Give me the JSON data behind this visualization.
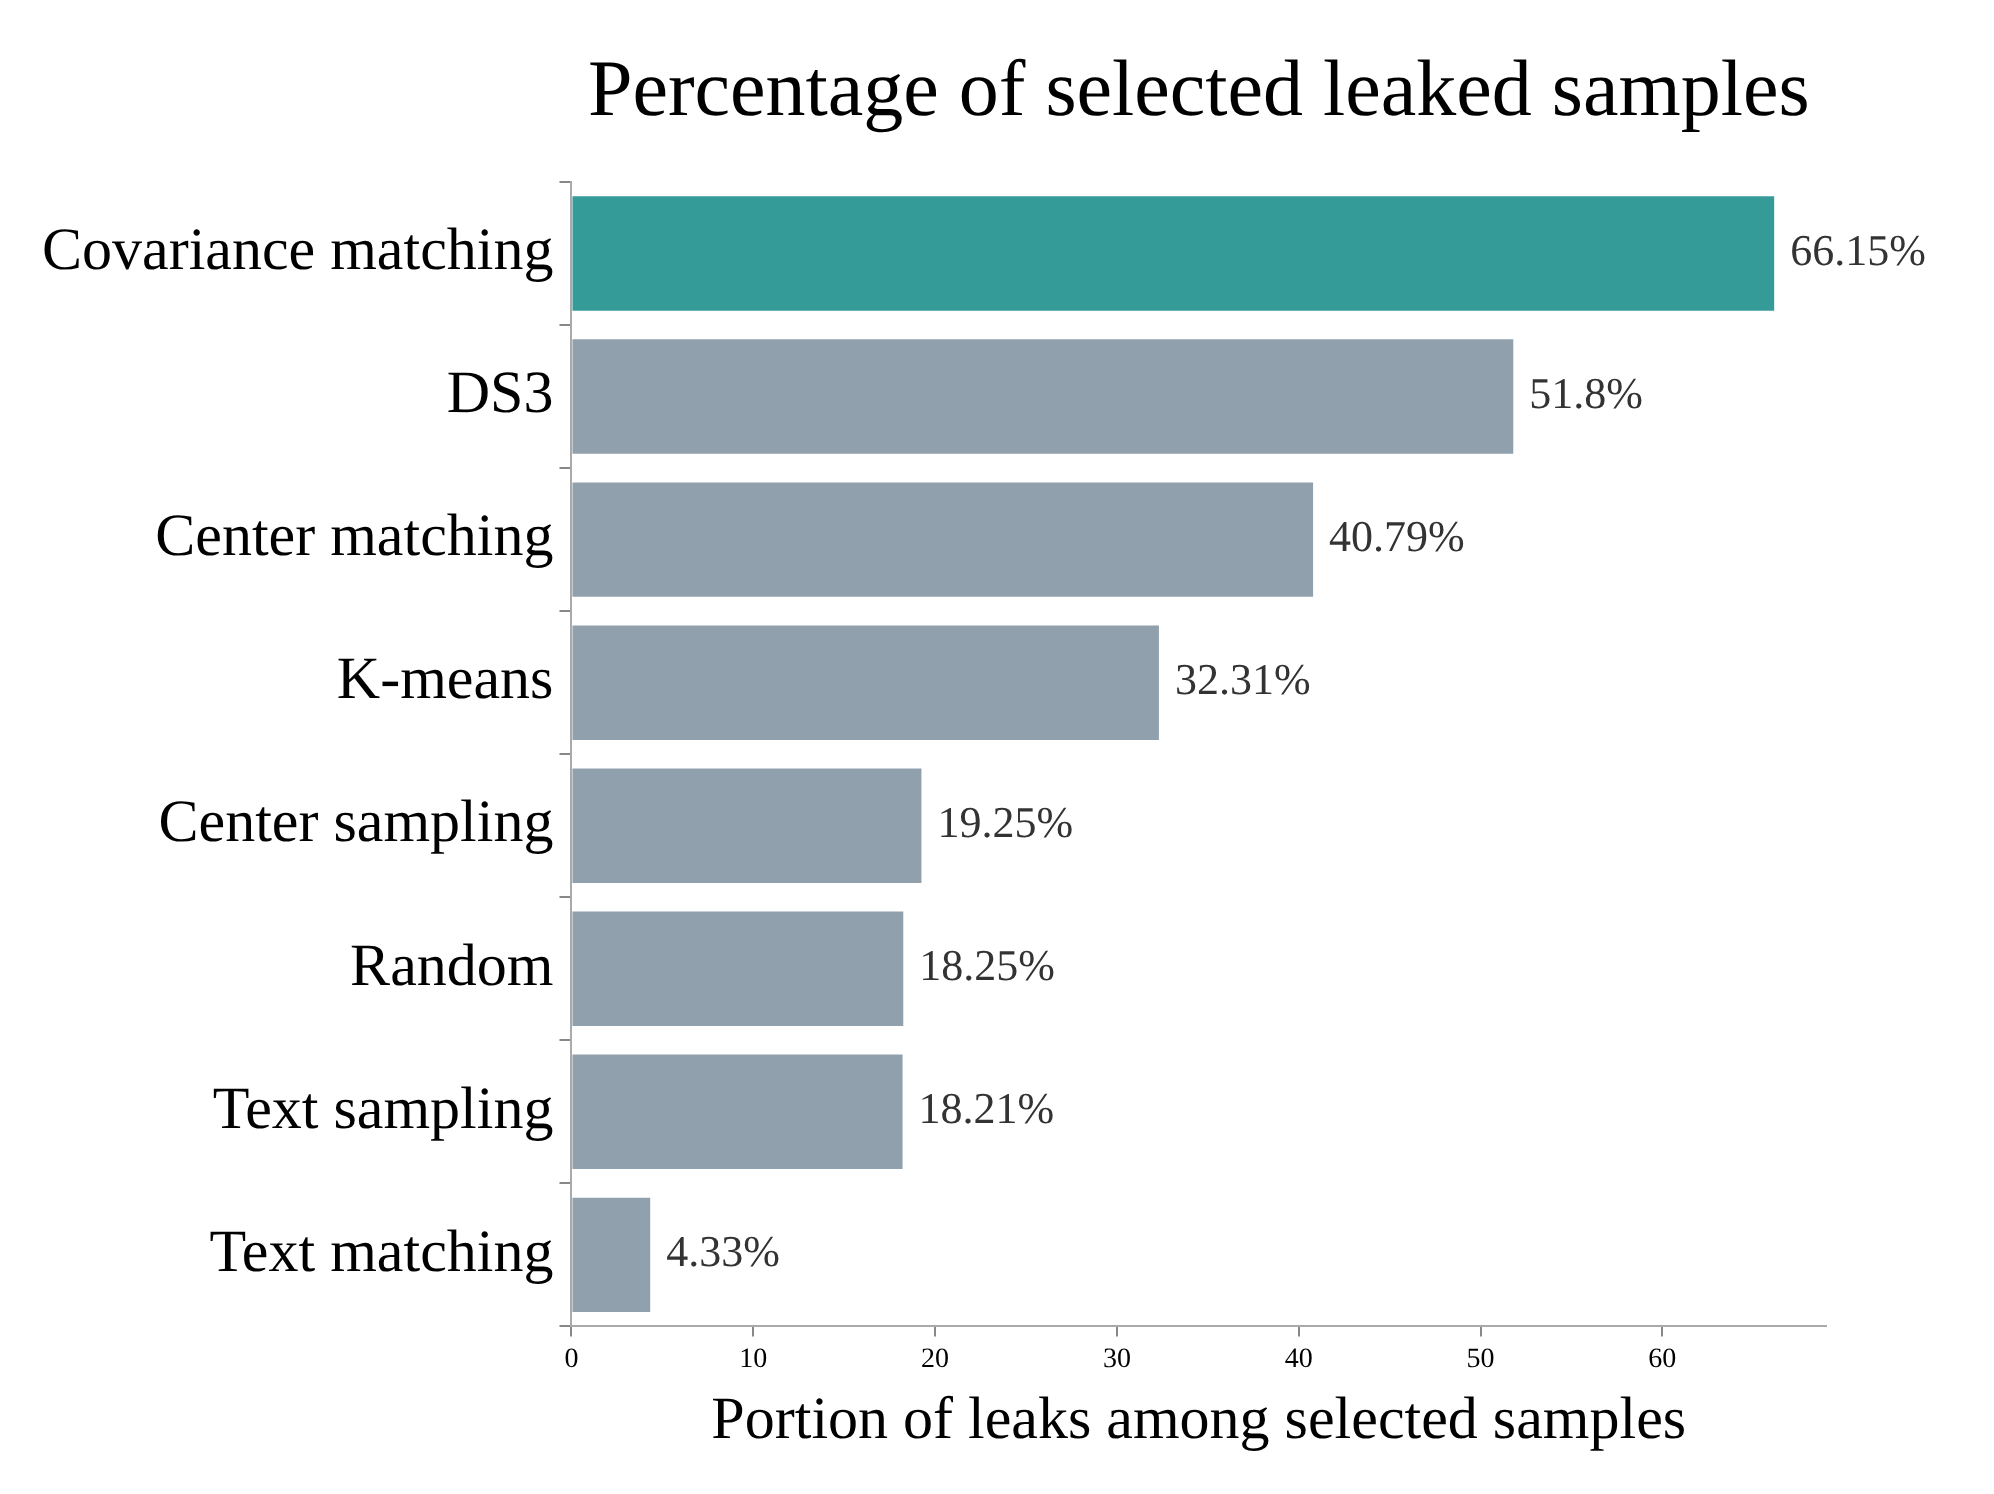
{
  "chart_data": {
    "type": "bar",
    "orientation": "horizontal",
    "title": "Percentage of selected leaked samples",
    "xlabel": "Portion of leaks among selected samples",
    "categories": [
      "Covariance matching",
      "DS3",
      "Center matching",
      "K-means",
      "Center sampling",
      "Random",
      "Text sampling",
      "Text matching"
    ],
    "values": [
      66.15,
      51.8,
      40.79,
      32.31,
      19.25,
      18.25,
      18.21,
      4.33
    ],
    "colors": [
      "#349b98",
      "#91a0ad",
      "#91a0ad",
      "#91a0ad",
      "#91a0ad",
      "#91a0ad",
      "#91a0ad",
      "#91a0ad"
    ],
    "value_labels": [
      "66.15%",
      "51.8%",
      "40.79%",
      "32.31%",
      "19.25%",
      "18.25%",
      "18.21%",
      "4.33%"
    ],
    "xlim": [
      0,
      69
    ],
    "xticks": [
      0,
      10,
      20,
      30,
      40,
      50,
      60
    ],
    "grid": false
  }
}
